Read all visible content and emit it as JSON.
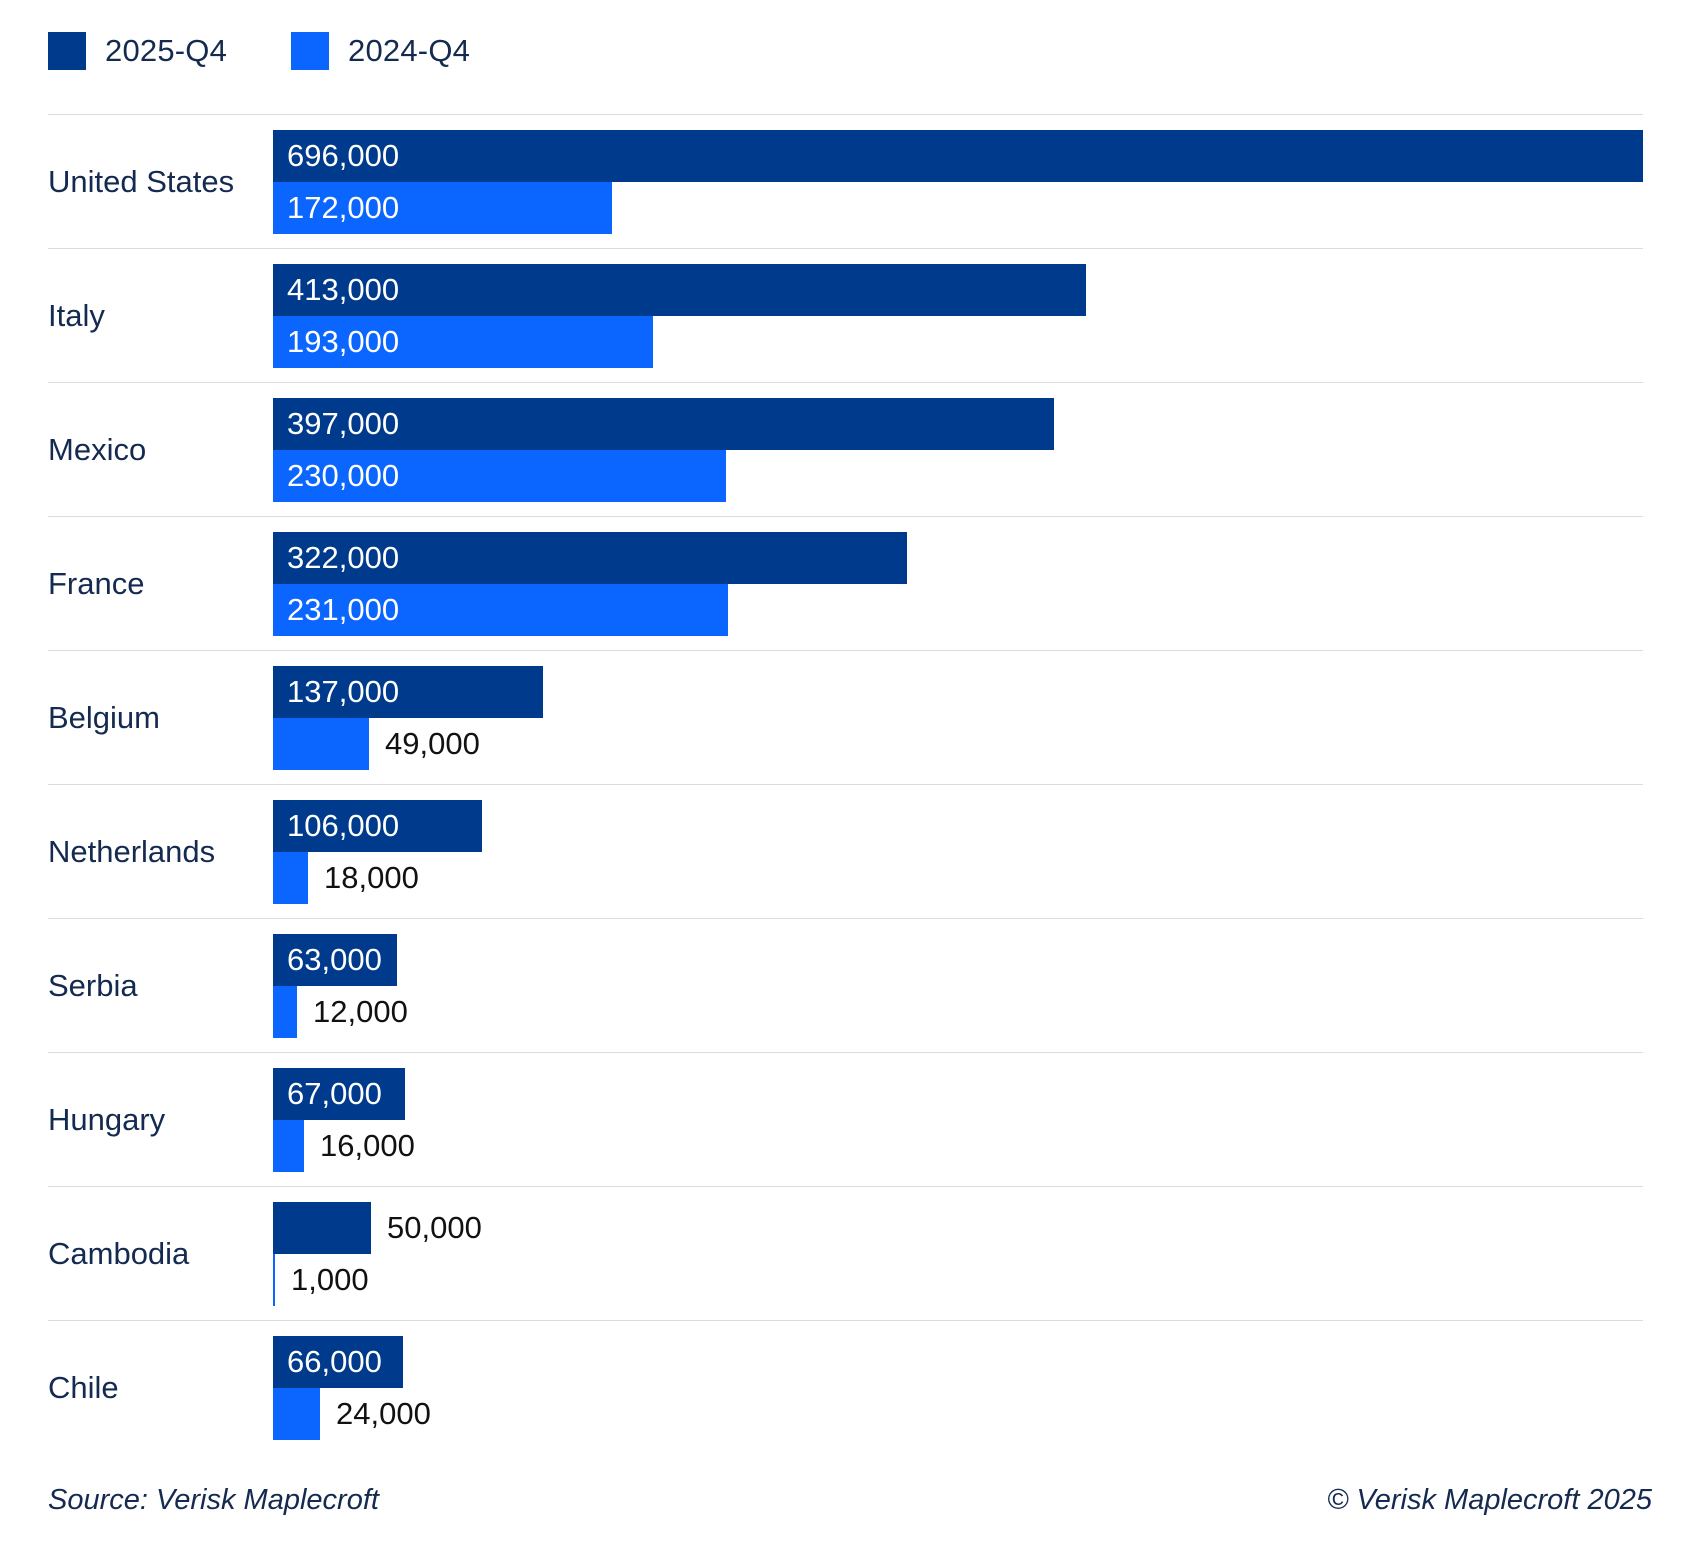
{
  "colors": {
    "series_2025": "#003a8c",
    "series_2024": "#0a66ff",
    "category_text": "#152a50",
    "value_inside_text": "#ffffff",
    "value_outside_text": "#111111",
    "separator": "#dcdcdc",
    "background": "#ffffff"
  },
  "legend": {
    "items": [
      {
        "label": "2025-Q4",
        "color": "#003a8c"
      },
      {
        "label": "2024-Q4",
        "color": "#0a66ff"
      }
    ]
  },
  "chart_data": {
    "type": "bar",
    "orientation": "horizontal",
    "title": "",
    "xlabel": "",
    "ylabel": "",
    "xlim": [
      0,
      696000
    ],
    "grid": "row-separators-only",
    "legend_position": "top-left",
    "categories": [
      "United States",
      "Italy",
      "Mexico",
      "France",
      "Belgium",
      "Netherlands",
      "Serbia",
      "Hungary",
      "Cambodia",
      "Chile"
    ],
    "series": [
      {
        "name": "2025-Q4",
        "color": "#003a8c",
        "values": [
          696000,
          413000,
          397000,
          322000,
          137000,
          106000,
          63000,
          67000,
          50000,
          66000
        ],
        "labels": [
          "696,000",
          "413,000",
          "397,000",
          "322,000",
          "137,000",
          "106,000",
          "63,000",
          "67,000",
          "50,000",
          "66,000"
        ]
      },
      {
        "name": "2024-Q4",
        "color": "#0a66ff",
        "values": [
          172000,
          193000,
          230000,
          231000,
          49000,
          18000,
          12000,
          16000,
          1000,
          24000
        ],
        "labels": [
          "172,000",
          "193,000",
          "230,000",
          "231,000",
          "49,000",
          "18,000",
          "12,000",
          "16,000",
          "1,000",
          "24,000"
        ]
      }
    ]
  },
  "footer": {
    "source": "Source: Verisk Maplecroft",
    "copyright": "© Verisk Maplecroft 2025"
  }
}
